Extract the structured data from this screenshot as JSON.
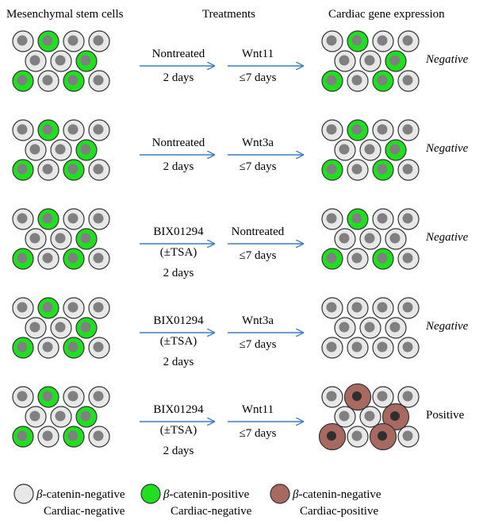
{
  "headers": {
    "left": "Mesenchymal stem cells",
    "middle": "Treatments",
    "right": "Cardiac gene expression"
  },
  "colors": {
    "negative_fill": "#e8e8e8",
    "positive_fill": "#1fe01f",
    "cardiac_fill": "#a86a60",
    "nucleus": "#808080",
    "cardiac_nucleus": "#2f2f2f",
    "arrow": "#3a7fc1",
    "outline": "#333333"
  },
  "rows": [
    {
      "step1": [
        "Nontreated",
        "2 days"
      ],
      "step2": [
        "Wnt11",
        "≤7 days"
      ],
      "result": "Negative",
      "result_italic": true,
      "final_state": "green"
    },
    {
      "step1": [
        "Nontreated",
        "2 days"
      ],
      "step2": [
        "Wnt3a",
        "≤7 days"
      ],
      "result": "Negative",
      "result_italic": true,
      "final_state": "green"
    },
    {
      "step1": [
        "BIX01294",
        "(±TSA)",
        "2 days"
      ],
      "step2": [
        "Nontreated",
        "≤7 days"
      ],
      "result": "Negative",
      "result_italic": true,
      "final_state": "green-few"
    },
    {
      "step1": [
        "BIX01294",
        "(±TSA)",
        "2 days"
      ],
      "step2": [
        "Wnt3a",
        "≤7 days"
      ],
      "result": "Negative",
      "result_italic": true,
      "final_state": "all-negative"
    },
    {
      "step1": [
        "BIX01294",
        "(±TSA)",
        "2 days"
      ],
      "step2": [
        "Wnt11",
        "≤7 days"
      ],
      "result": "Positive",
      "result_italic": false,
      "final_state": "cardiac"
    }
  ],
  "legend": [
    {
      "type": "negative",
      "prefix": "β",
      "line1": "-catenin-negative",
      "line2": "Cardiac-negative"
    },
    {
      "type": "positive",
      "prefix": "β",
      "line1": "-catenin-positive",
      "line2": "Cardiac-negative"
    },
    {
      "type": "cardiac",
      "prefix": "β",
      "line1": "-catenin-negative",
      "line2": "Cardiac-positive"
    }
  ]
}
